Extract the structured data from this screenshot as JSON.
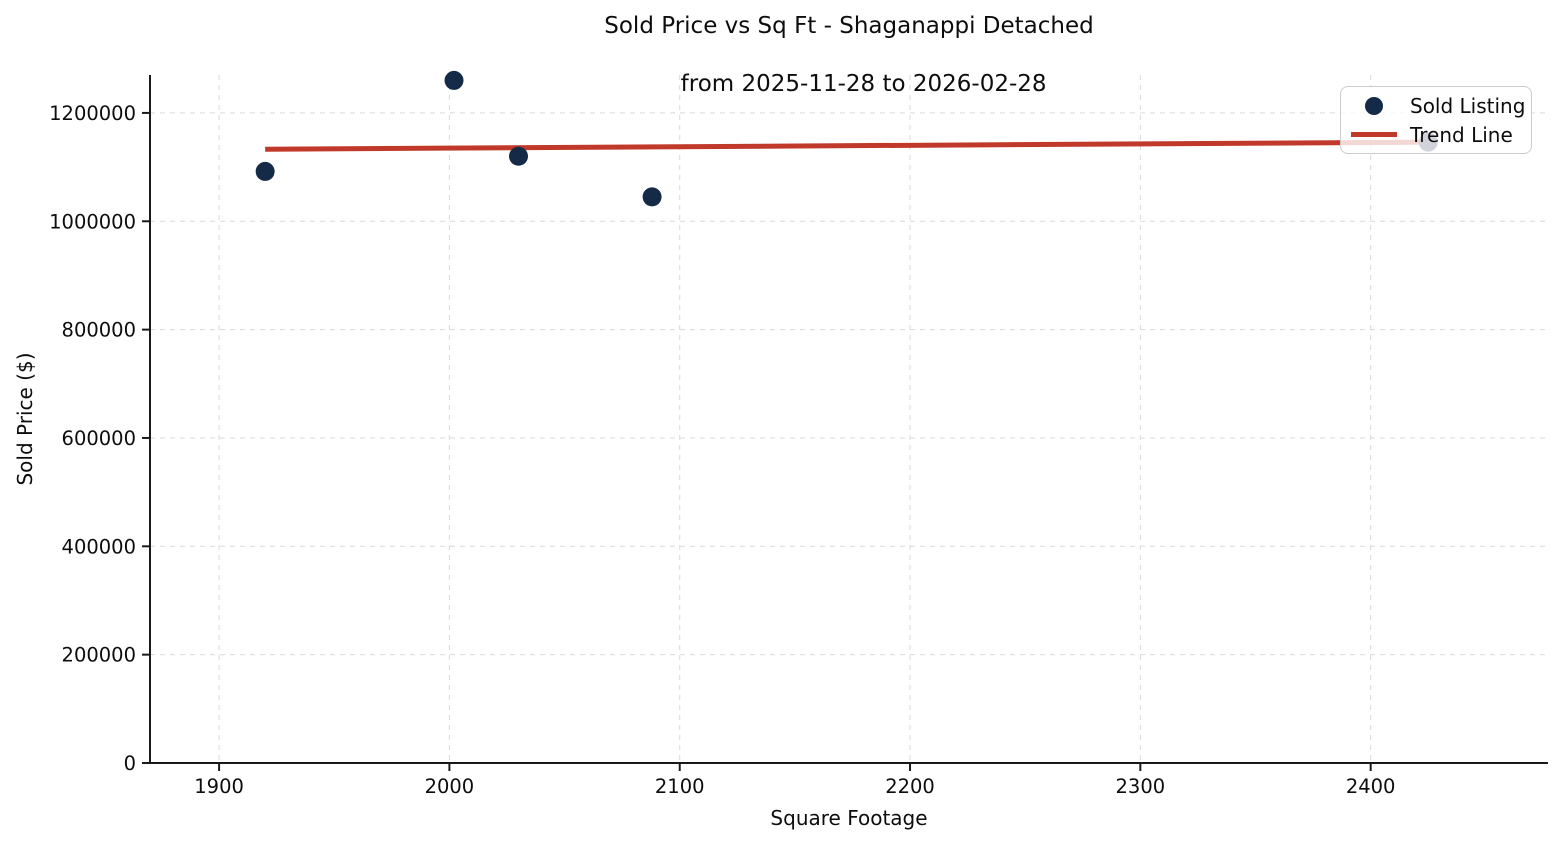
{
  "title": {
    "line1": "Sold Price vs Sq Ft - Shaganappi Detached",
    "line2": "from 2025-11-28 to 2026-02-28"
  },
  "legend": {
    "items": [
      {
        "label": "Sold Listing",
        "marker": "dot",
        "color": "#152a47"
      },
      {
        "label": "Trend Line",
        "marker": "line",
        "color": "#c0392b"
      }
    ]
  },
  "colors": {
    "background": "#ffffff",
    "scatter": "#152a47",
    "trend": "#c0392b",
    "grid": "#d9d9d9",
    "axis": "#1a1a1a",
    "text": "#0d0d0d"
  },
  "chart_data": {
    "type": "scatter",
    "title": "Sold Price vs Sq Ft - Shaganappi Detached\nfrom 2025-11-28 to 2026-02-28",
    "xlabel": "Square Footage",
    "ylabel": "Sold Price ($)",
    "xlim": [
      1870,
      2477
    ],
    "ylim": [
      0,
      1270000
    ],
    "x_ticks": [
      1900,
      2000,
      2100,
      2200,
      2300,
      2400
    ],
    "y_ticks": [
      0,
      200000,
      400000,
      600000,
      800000,
      1000000,
      1200000
    ],
    "grid": "dashed",
    "legend_position": "upper right",
    "series": [
      {
        "name": "Sold Listing",
        "type": "scatter",
        "color": "#152a47",
        "points": [
          {
            "x": 1920,
            "y": 1092000
          },
          {
            "x": 2002,
            "y": 1260000
          },
          {
            "x": 2030,
            "y": 1120000
          },
          {
            "x": 2088,
            "y": 1045000
          },
          {
            "x": 2425,
            "y": 1146000
          }
        ]
      },
      {
        "name": "Trend Line",
        "type": "line",
        "color": "#c0392b",
        "points": [
          {
            "x": 1920,
            "y": 1133000
          },
          {
            "x": 2425,
            "y": 1146000
          }
        ]
      }
    ]
  }
}
